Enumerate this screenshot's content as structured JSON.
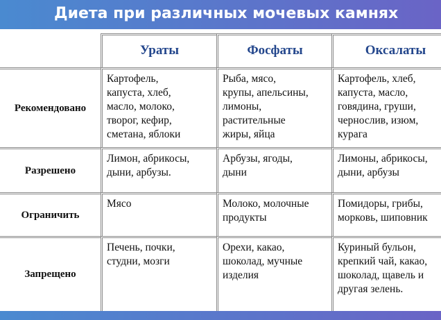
{
  "header": {
    "title": "Диета при различных мочевых камнях"
  },
  "table": {
    "columns": [
      "Ураты",
      "Фосфаты",
      "Оксалаты"
    ],
    "rows": [
      {
        "label": "Рекомендовано",
        "cells": [
          [
            "Картофель,",
            "капуста, хлеб,",
            "масло, молоко,",
            "творог, кефир,",
            "сметана, яблоки"
          ],
          [
            "Рыба, мясо,",
            "крупы, апельсины,",
            "лимоны,",
            "растительные",
            "жиры, яйца"
          ],
          [
            "Картофель, хлеб,",
            "капуста, масло,",
            "говядина, груши,",
            "чернослив, изюм,",
            "курага"
          ]
        ]
      },
      {
        "label": "Разрешено",
        "cells": [
          [
            "Лимон, абрикосы,",
            "дыни, арбузы."
          ],
          [
            "Арбузы, ягоды,",
            "дыни"
          ],
          [
            "Лимоны, абрикосы,",
            "дыни, арбузы"
          ]
        ]
      },
      {
        "label": "Ограничить",
        "cells": [
          [
            "Мясо"
          ],
          [
            "Молоко, молочные",
            "продукты"
          ],
          [
            "Помидоры, грибы,",
            "морковь, шиповник"
          ]
        ]
      },
      {
        "label": "Запрещено",
        "cells": [
          [
            "Печень, почки,",
            "студни, мозги"
          ],
          [
            "Орехи, какао,",
            "шоколад, мучные",
            "изделия"
          ],
          [
            "Куриный бульон,",
            "крепкий чай, какао,",
            "шоколад, щавель и",
            "другая зелень."
          ]
        ]
      }
    ]
  }
}
